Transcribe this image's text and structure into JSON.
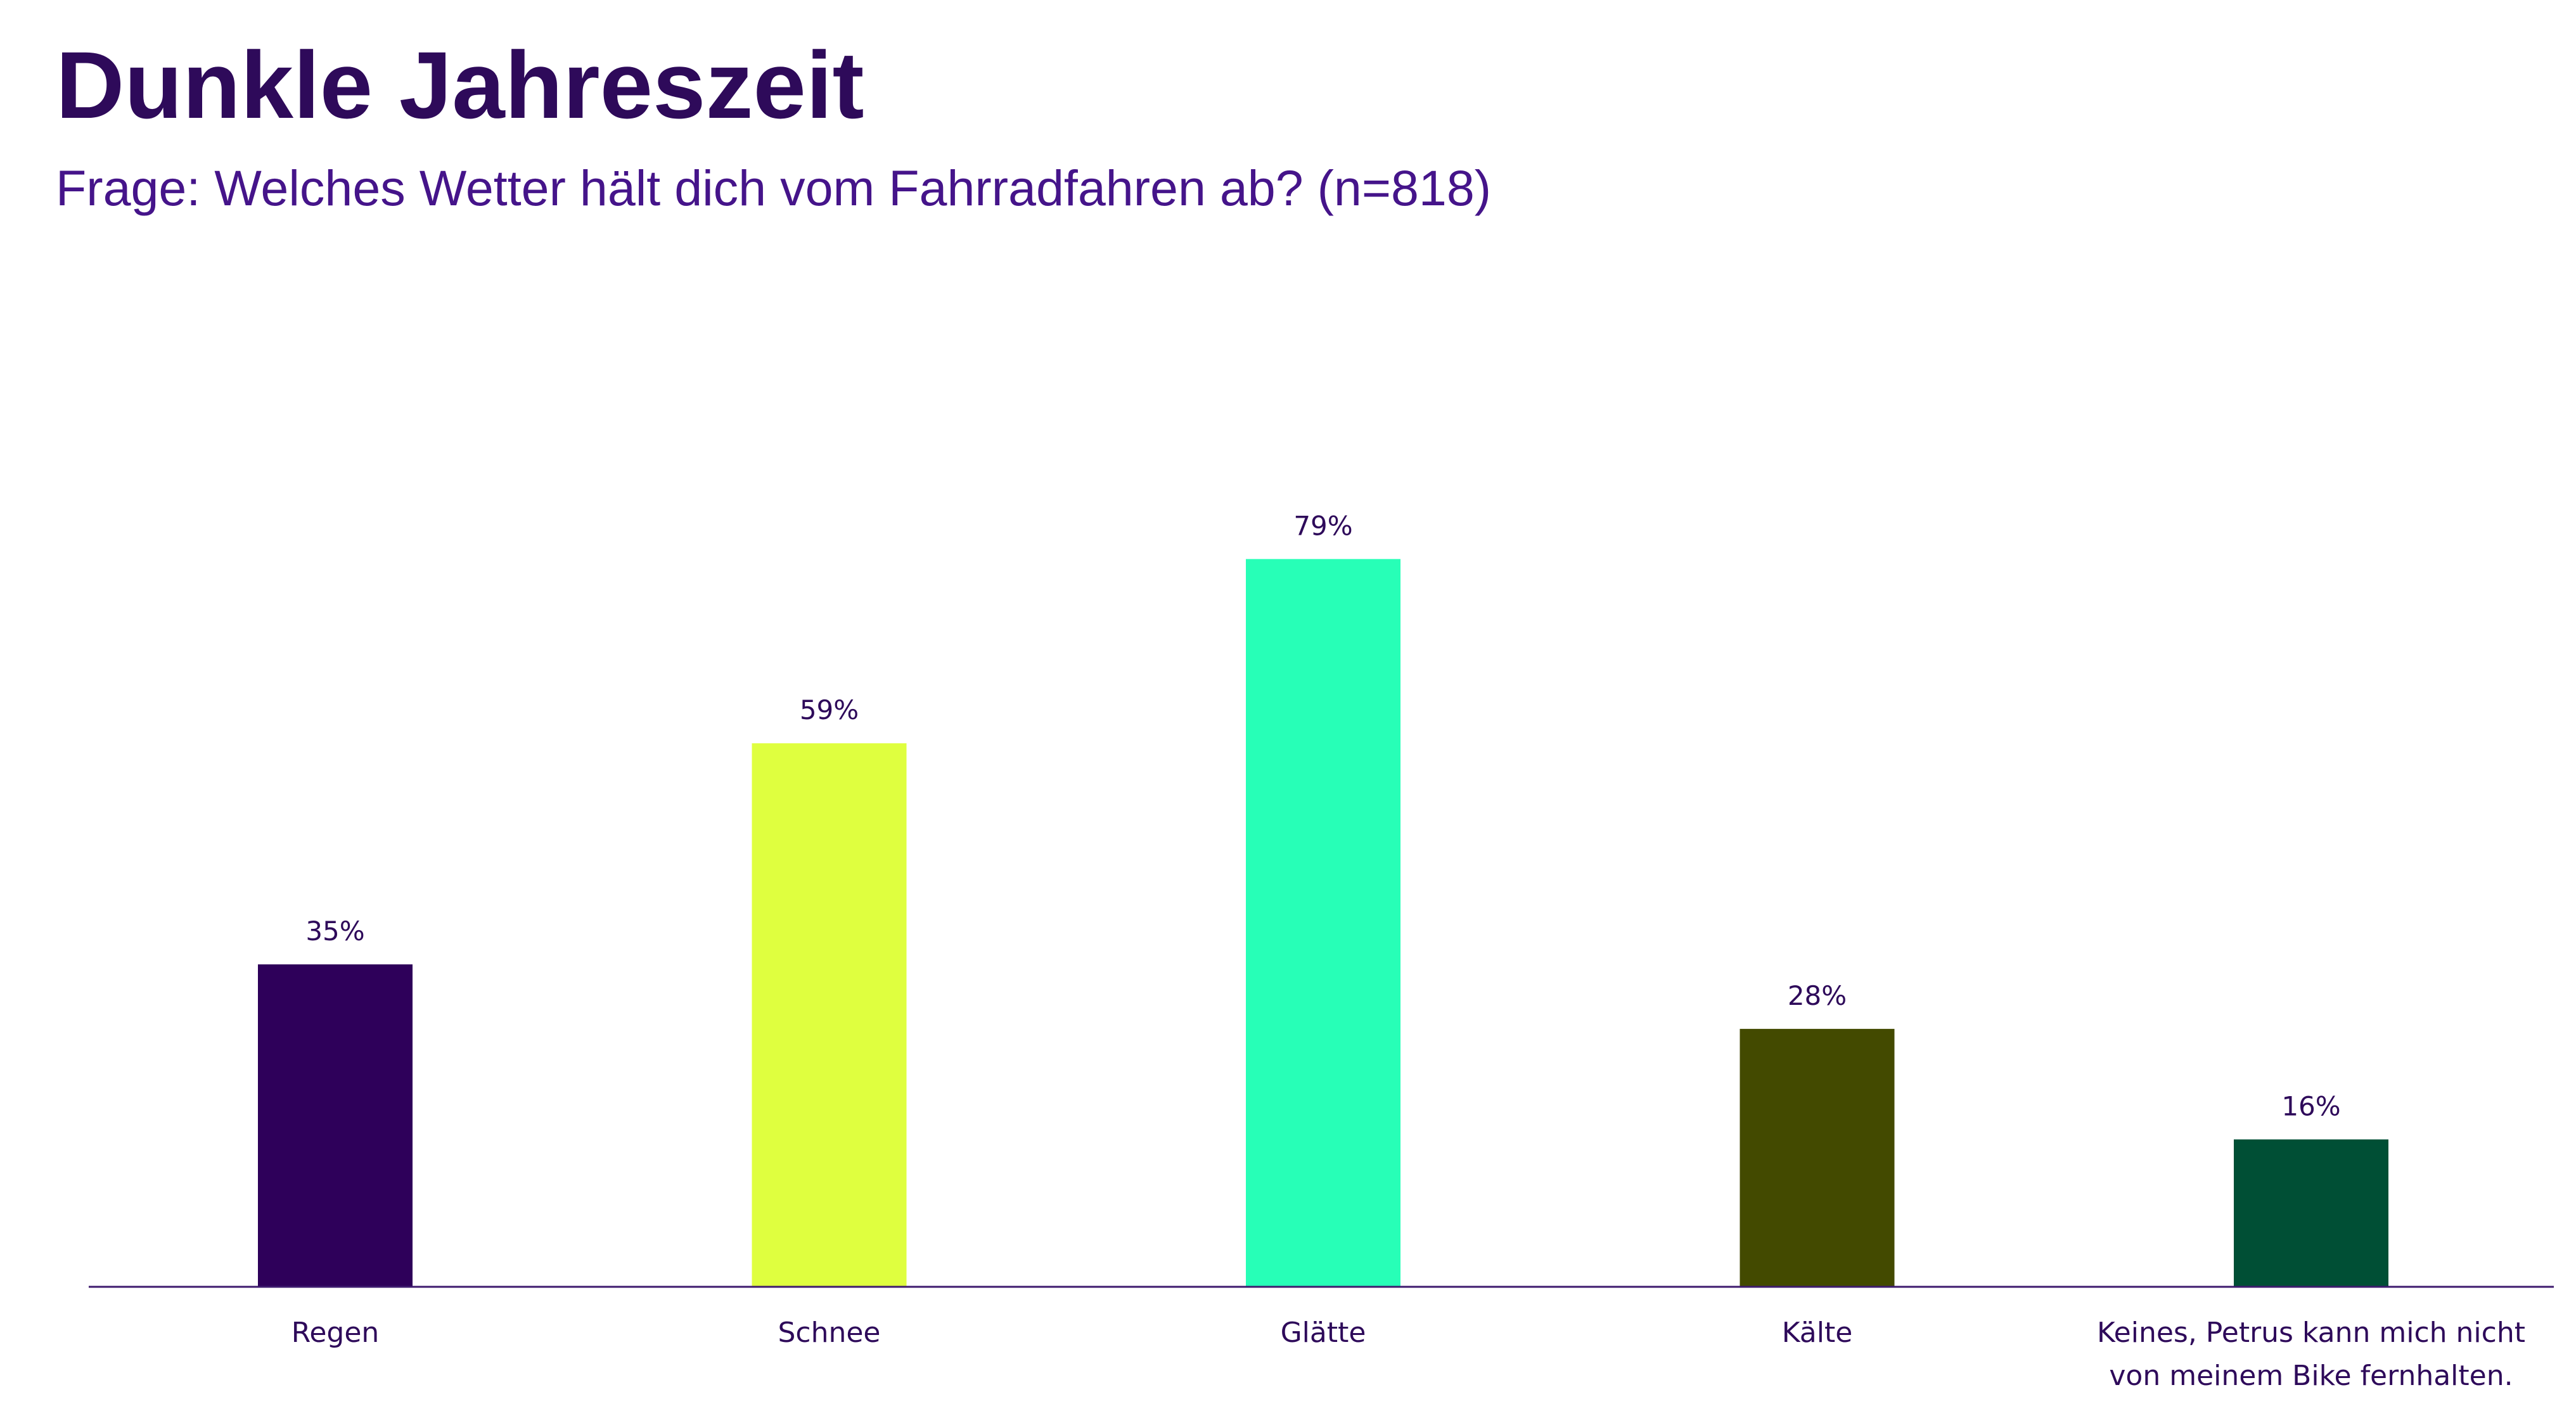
{
  "chart_data": {
    "type": "bar",
    "title": "Dunkle Jahreszeit",
    "subtitle": "Frage: Welches Wetter hält dich vom Fahrradfahren ab? (n=818)",
    "categories": [
      [
        "Regen"
      ],
      [
        "Schnee"
      ],
      [
        "Glätte"
      ],
      [
        "Kälte"
      ],
      [
        "Keines, Petrus kann mich nicht",
        "von meinem Bike fernhalten."
      ]
    ],
    "values": [
      35,
      59,
      79,
      28,
      16
    ],
    "value_labels": [
      "35%",
      "59%",
      "79%",
      "28%",
      "16%"
    ],
    "colors": [
      "#2e005a",
      "#dfff3f",
      "#27ffb7",
      "#434a00",
      "#004f35"
    ],
    "ylim": [
      0,
      100
    ],
    "grid": false,
    "legend": "none"
  }
}
